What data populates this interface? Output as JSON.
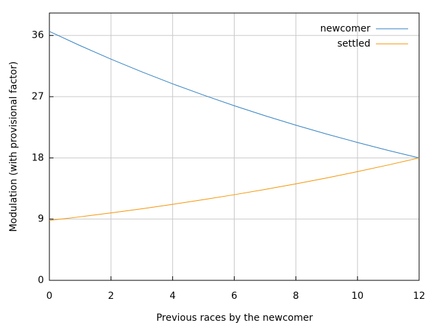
{
  "chart_data": {
    "type": "line",
    "x_label": "Previous races by the newcomer",
    "y_label": "Modulation (with provisional factor)",
    "x": [
      0,
      1,
      2,
      3,
      4,
      5,
      6,
      7,
      8,
      9,
      10,
      11,
      12
    ],
    "series": [
      {
        "name": "newcomer",
        "color": "#2f7fc0",
        "values": [
          36.6,
          34.5,
          32.52,
          30.65,
          28.89,
          27.24,
          25.67,
          24.2,
          22.81,
          21.5,
          20.27,
          19.1,
          18.0
        ]
      },
      {
        "name": "settled",
        "color": "#f39200",
        "values": [
          8.8,
          9.34,
          9.91,
          10.52,
          11.17,
          11.86,
          12.59,
          13.36,
          14.18,
          15.05,
          15.98,
          16.96,
          18.0
        ]
      }
    ],
    "xlim": [
      0,
      12
    ],
    "xticks": [
      0,
      2,
      4,
      6,
      8,
      10,
      12
    ],
    "ylim": [
      0,
      39.3
    ],
    "yticks": [
      0,
      9,
      18,
      27,
      36
    ],
    "grid": true,
    "legend": "top-right"
  }
}
